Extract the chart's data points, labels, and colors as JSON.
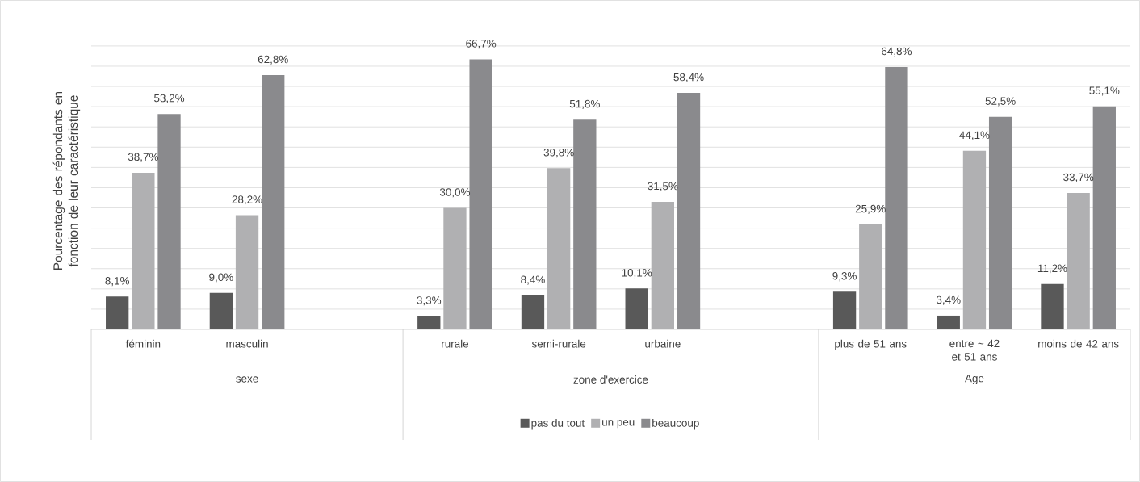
{
  "chart_data": {
    "type": "bar",
    "ylabel": "Pourcentage des répondants en fonction de leur caractéristique",
    "categories": [
      "féminin",
      "masculin",
      null,
      "rurale",
      "semi-rurale",
      "urbaine",
      null,
      "plus de 51 ans",
      "entre ~ 42 et 51 ans",
      "moins de 42 ans"
    ],
    "series": [
      {
        "name": "pas du tout",
        "color": "#595959",
        "values": [
          8.1,
          9.0,
          null,
          3.3,
          8.4,
          10.1,
          null,
          9.3,
          3.4,
          11.2
        ],
        "value_labels": [
          "8,1%",
          "9,0%",
          null,
          "3,3%",
          "8,4%",
          "10,1%",
          null,
          "9,3%",
          "3,4%",
          "11,2%"
        ]
      },
      {
        "name": "un peu",
        "color": "#b0b0b2",
        "values": [
          38.7,
          28.2,
          null,
          30.0,
          39.8,
          31.5,
          null,
          25.9,
          44.1,
          33.7
        ],
        "value_labels": [
          "38,7%",
          "28,2%",
          null,
          "30,0%",
          "39,8%",
          "31,5%",
          null,
          "25,9%",
          "44,1%",
          "33,7%"
        ]
      },
      {
        "name": "beaucoup",
        "color": "#8a8a8d",
        "values": [
          53.2,
          62.8,
          null,
          66.7,
          51.8,
          58.4,
          null,
          64.8,
          52.5,
          55.1
        ],
        "value_labels": [
          "53,2%",
          "62,8%",
          null,
          "66,7%",
          "51,8%",
          "58,4%",
          null,
          "64,8%",
          "52,5%",
          "55,1%"
        ]
      }
    ],
    "annotations": [
      "sexe",
      "zone d'exercice",
      "Age"
    ],
    "tick_labels": "x",
    "grid": "y",
    "legend": "bottom"
  }
}
